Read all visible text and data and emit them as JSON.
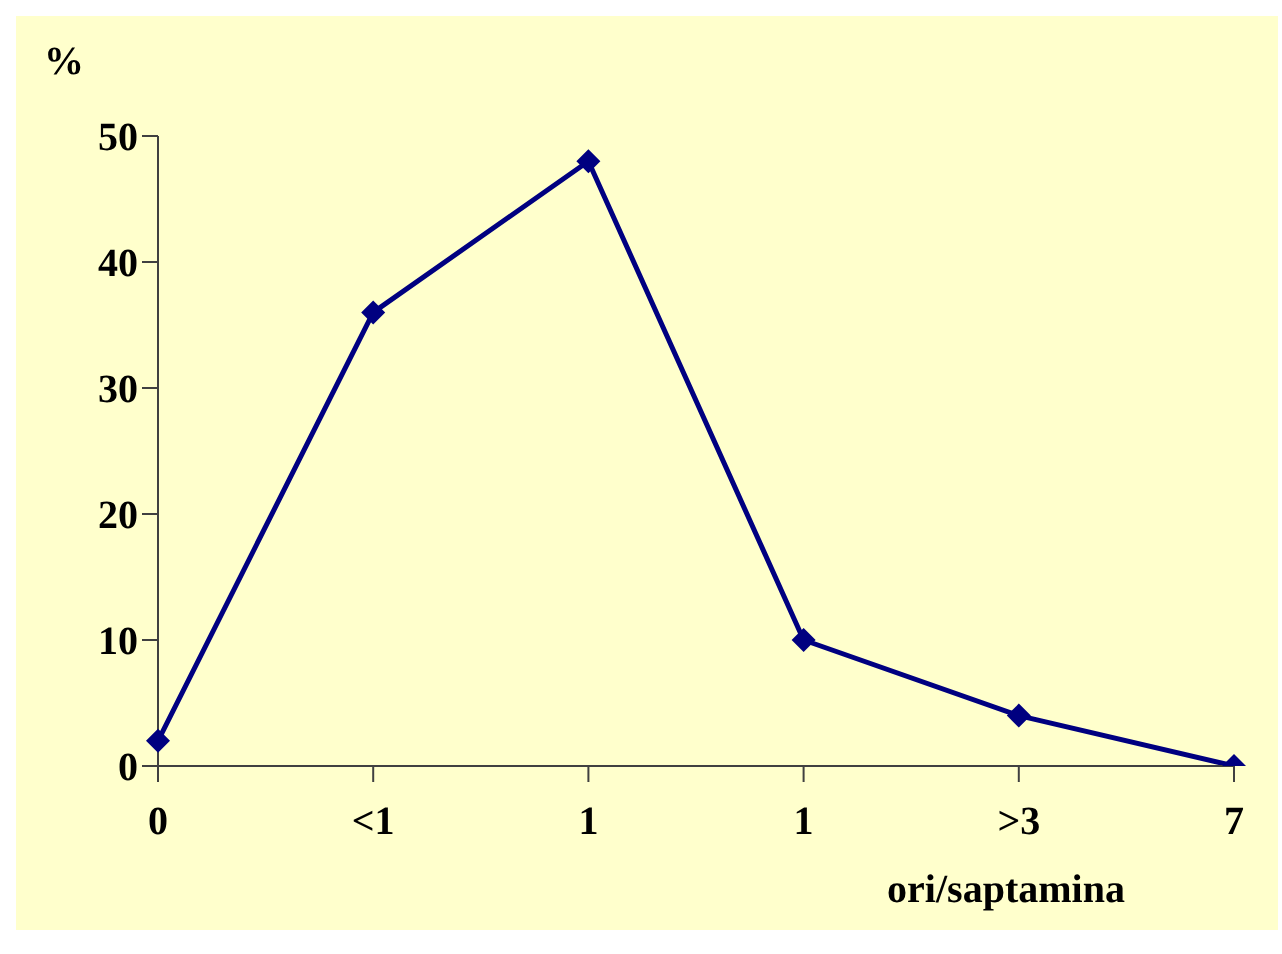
{
  "chart_data": {
    "type": "line",
    "xlabel": "ori/saptamina",
    "ylabel": "%",
    "categories": [
      "0",
      "<1",
      "1",
      "1",
      ">3",
      "7"
    ],
    "series": [
      {
        "color": "#000080",
        "values": [
          2,
          36,
          48,
          10,
          4,
          0
        ]
      }
    ],
    "ylim": [
      0,
      50
    ],
    "yticks": [
      0,
      10,
      20,
      30,
      40,
      50
    ],
    "marker": "diamond",
    "line_style": "solid",
    "grid": false,
    "legend": false
  }
}
